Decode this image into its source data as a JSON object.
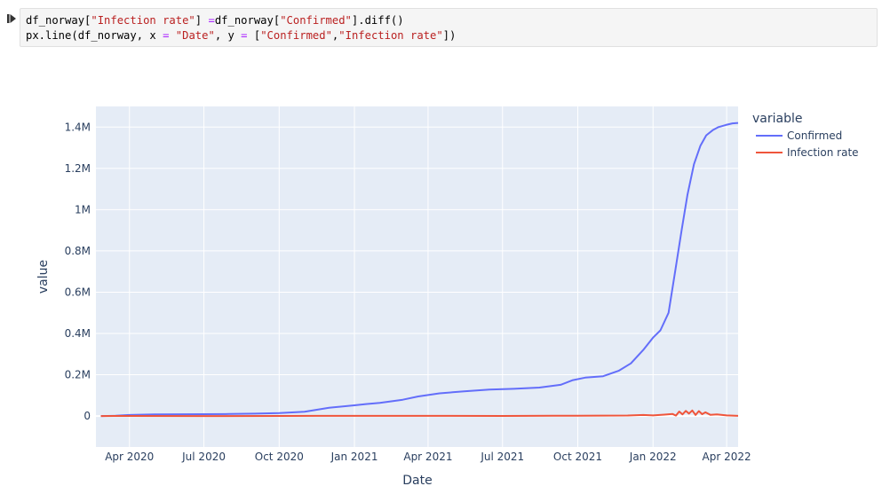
{
  "code_cell": {
    "lines": [
      [
        {
          "t": "df_norway[",
          "c": "plain"
        },
        {
          "t": "\"Infection rate\"",
          "c": "str"
        },
        {
          "t": "] ",
          "c": "plain"
        },
        {
          "t": "=",
          "c": "op"
        },
        {
          "t": "df_norway[",
          "c": "plain"
        },
        {
          "t": "\"Confirmed\"",
          "c": "str"
        },
        {
          "t": "].diff()",
          "c": "plain"
        }
      ],
      [
        {
          "t": "px.line(df_norway, x ",
          "c": "plain"
        },
        {
          "t": "=",
          "c": "op"
        },
        {
          "t": " ",
          "c": "plain"
        },
        {
          "t": "\"Date\"",
          "c": "str"
        },
        {
          "t": ", y ",
          "c": "plain"
        },
        {
          "t": "=",
          "c": "op"
        },
        {
          "t": " [",
          "c": "plain"
        },
        {
          "t": "\"Confirmed\"",
          "c": "str"
        },
        {
          "t": ",",
          "c": "plain"
        },
        {
          "t": "\"Infection rate\"",
          "c": "str"
        },
        {
          "t": "])",
          "c": "plain"
        }
      ]
    ],
    "run_icon": "run-cell-icon"
  },
  "chart_data": {
    "type": "line",
    "xlabel": "Date",
    "ylabel": "value",
    "x_type": "date",
    "xlim": [
      "2020-02-20",
      "2022-04-15"
    ],
    "ylim": [
      -150000,
      1500000
    ],
    "y_ticks": [
      {
        "value": 0,
        "label": "0"
      },
      {
        "value": 200000,
        "label": "0.2M"
      },
      {
        "value": 400000,
        "label": "0.4M"
      },
      {
        "value": 600000,
        "label": "0.6M"
      },
      {
        "value": 800000,
        "label": "0.8M"
      },
      {
        "value": 1000000,
        "label": "1M"
      },
      {
        "value": 1200000,
        "label": "1.2M"
      },
      {
        "value": 1400000,
        "label": "1.4M"
      }
    ],
    "x_ticks": [
      {
        "value": "2020-04-01",
        "label": "Apr 2020"
      },
      {
        "value": "2020-07-01",
        "label": "Jul 2020"
      },
      {
        "value": "2020-10-01",
        "label": "Oct 2020"
      },
      {
        "value": "2021-01-01",
        "label": "Jan 2021"
      },
      {
        "value": "2021-04-01",
        "label": "Apr 2021"
      },
      {
        "value": "2021-07-01",
        "label": "Jul 2021"
      },
      {
        "value": "2021-10-01",
        "label": "Oct 2021"
      },
      {
        "value": "2022-01-01",
        "label": "Jan 2022"
      },
      {
        "value": "2022-04-01",
        "label": "Apr 2022"
      }
    ],
    "grid": true,
    "legend": {
      "title": "variable",
      "position": "right"
    },
    "series": [
      {
        "name": "Confirmed",
        "color": "#636efa",
        "x": [
          "2020-02-26",
          "2020-03-15",
          "2020-04-01",
          "2020-05-01",
          "2020-06-01",
          "2020-07-01",
          "2020-08-01",
          "2020-09-01",
          "2020-10-01",
          "2020-11-01",
          "2020-12-01",
          "2021-01-01",
          "2021-01-15",
          "2021-02-01",
          "2021-03-01",
          "2021-03-20",
          "2021-04-15",
          "2021-05-15",
          "2021-06-15",
          "2021-07-15",
          "2021-08-15",
          "2021-09-10",
          "2021-09-25",
          "2021-10-10",
          "2021-11-01",
          "2021-11-20",
          "2021-12-05",
          "2021-12-20",
          "2022-01-01",
          "2022-01-10",
          "2022-01-20",
          "2022-01-28",
          "2022-02-05",
          "2022-02-12",
          "2022-02-20",
          "2022-02-28",
          "2022-03-07",
          "2022-03-15",
          "2022-03-22",
          "2022-03-31",
          "2022-04-08",
          "2022-04-15"
        ],
        "y": [
          0,
          1400,
          5000,
          8000,
          8700,
          9000,
          10000,
          11500,
          14500,
          21000,
          40000,
          52000,
          58000,
          64000,
          79000,
          95000,
          110000,
          120000,
          128000,
          132000,
          138000,
          151000,
          174000,
          186000,
          193000,
          219000,
          255000,
          320000,
          380000,
          415000,
          500000,
          700000,
          900000,
          1070000,
          1220000,
          1310000,
          1360000,
          1385000,
          1400000,
          1410000,
          1418000,
          1420000
        ]
      },
      {
        "name": "Infection rate",
        "color": "#ef553b",
        "x": [
          "2020-02-26",
          "2020-04-01",
          "2020-07-01",
          "2020-10-01",
          "2020-11-15",
          "2021-01-01",
          "2021-03-01",
          "2021-04-01",
          "2021-07-01",
          "2021-09-01",
          "2021-10-01",
          "2021-12-01",
          "2021-12-20",
          "2022-01-01",
          "2022-01-15",
          "2022-01-25",
          "2022-01-29",
          "2022-02-02",
          "2022-02-06",
          "2022-02-10",
          "2022-02-14",
          "2022-02-18",
          "2022-02-22",
          "2022-02-26",
          "2022-03-02",
          "2022-03-06",
          "2022-03-12",
          "2022-03-20",
          "2022-04-01",
          "2022-04-15"
        ],
        "y": [
          0,
          200,
          100,
          300,
          900,
          700,
          800,
          1000,
          600,
          1100,
          1500,
          2600,
          5000,
          3000,
          7000,
          10000,
          2000,
          22000,
          8000,
          25000,
          12000,
          27000,
          5000,
          24000,
          9000,
          18000,
          6000,
          8000,
          3000,
          1000
        ]
      }
    ]
  }
}
